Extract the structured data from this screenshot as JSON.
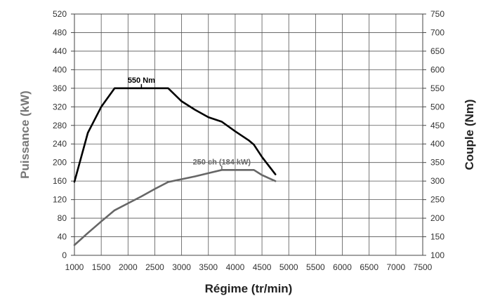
{
  "chart_data": {
    "type": "line",
    "xlabel": "Régime (tr/min)",
    "ylabel_left": "Puissance (kW)",
    "ylabel_right": "Couple (Nm)",
    "xlim": [
      1000,
      7500
    ],
    "ylim_left": [
      0,
      520
    ],
    "ylim_right": [
      100,
      750
    ],
    "x_ticks": [
      1000,
      1500,
      2000,
      2500,
      3000,
      3500,
      4000,
      4500,
      5000,
      5500,
      6000,
      6500,
      7000,
      7500
    ],
    "y_left_ticks": [
      0,
      40,
      80,
      120,
      160,
      200,
      240,
      280,
      320,
      360,
      400,
      440,
      480,
      520
    ],
    "y_right_ticks": [
      100,
      150,
      200,
      250,
      300,
      350,
      400,
      450,
      500,
      550,
      600,
      650,
      700,
      750
    ],
    "grid": true,
    "series": [
      {
        "axis": "right",
        "color": "#000000",
        "x": [
          1000,
          1250,
          1500,
          1750,
          2000,
          2250,
          2500,
          2750,
          3000,
          3250,
          3500,
          3750,
          4000,
          4250,
          4350,
          4500,
          4750
        ],
        "values": [
          298,
          430,
          500,
          550,
          550,
          550,
          550,
          550,
          515,
          492,
          472,
          460,
          434,
          410,
          398,
          365,
          318
        ]
      },
      {
        "axis": "left",
        "color": "#666666",
        "x": [
          1000,
          1250,
          1500,
          1750,
          2000,
          2250,
          2500,
          2750,
          3000,
          3250,
          3500,
          3750,
          4000,
          4250,
          4350,
          4500,
          4750
        ],
        "values": [
          22,
          48,
          73,
          97,
          112,
          127,
          143,
          158,
          164,
          170,
          177,
          184,
          184,
          184,
          184,
          173,
          160
        ]
      }
    ],
    "annotations": [
      {
        "text": "550 Nm",
        "x": 2250,
        "value": 550,
        "axis": "right",
        "color": "#000000"
      },
      {
        "text": "250 ch (184 kW)",
        "x": 3750,
        "value": 184,
        "axis": "left",
        "color": "#666666"
      }
    ]
  }
}
